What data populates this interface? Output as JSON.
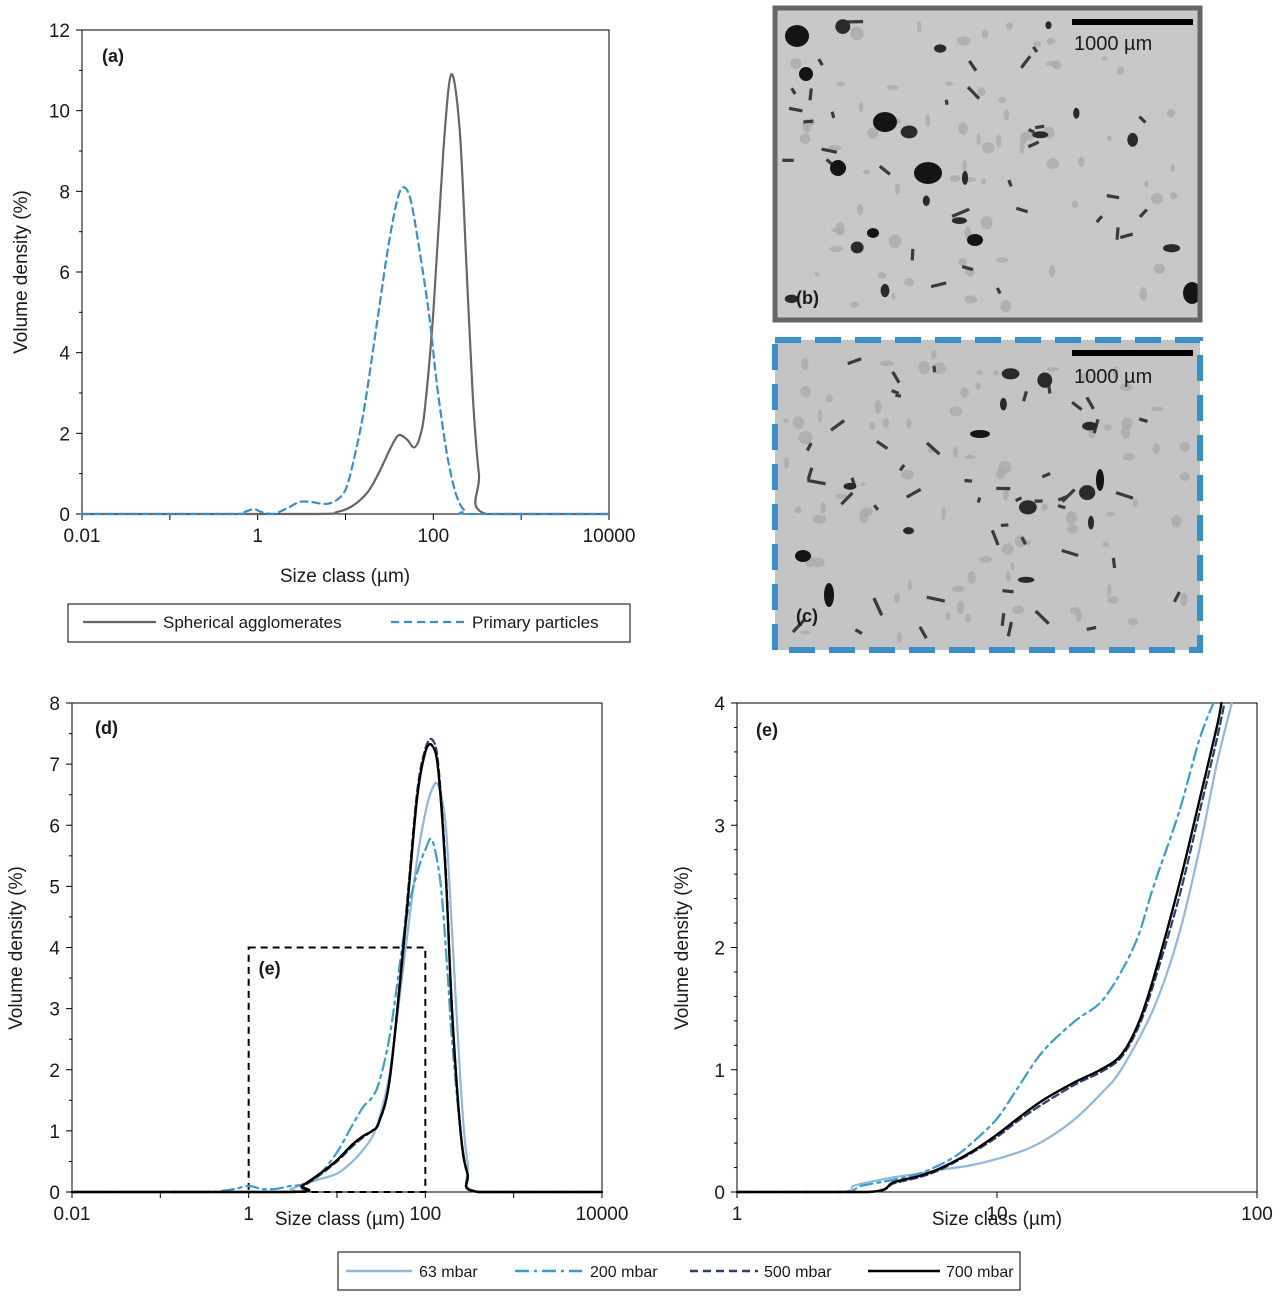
{
  "colors": {
    "grey_solid": "#666666",
    "blue_dashed": "#3a8fc8",
    "light_blue": "#8fb8dc",
    "teal_dashdot": "#3a9fc8",
    "navy_dashed": "#2e3f6e",
    "black": "#000000",
    "photo_bg": "#c6c6c6"
  },
  "chart_data": [
    {
      "panel": "(a)",
      "type": "line",
      "xscale": "log",
      "xlim": [
        0.01,
        10000
      ],
      "ylim": [
        0,
        12
      ],
      "xticks": [
        "0.01",
        "1",
        "100",
        "10000"
      ],
      "yticks": [
        "0",
        "2",
        "4",
        "6",
        "8",
        "10",
        "12"
      ],
      "xlabel": "Size class (µm)",
      "ylabel": "Volume density (%)",
      "legend_position": "bottom",
      "series": [
        {
          "name": "Spherical agglomerates",
          "style": "solid",
          "x": [
            0.01,
            4,
            8,
            12,
            18,
            25,
            32,
            40,
            50,
            60,
            70,
            80,
            100,
            130,
            160,
            200,
            240,
            280,
            330,
            400,
            10000
          ],
          "y": [
            0,
            0,
            0.05,
            0.2,
            0.55,
            1.1,
            1.6,
            1.95,
            1.85,
            1.65,
            1.9,
            2.6,
            5.0,
            9.0,
            10.9,
            9.5,
            6.0,
            3.0,
            1.0,
            0,
            0
          ]
        },
        {
          "name": "Primary particles",
          "style": "dashed",
          "x": [
            0.01,
            0.5,
            0.7,
            0.9,
            1.1,
            1.5,
            2.2,
            3,
            4,
            6,
            8,
            10,
            12,
            16,
            22,
            30,
            38,
            45,
            55,
            70,
            90,
            110,
            140,
            170,
            200,
            230,
            270,
            10000
          ],
          "y": [
            0,
            0,
            0.05,
            0.12,
            0.05,
            0,
            0.15,
            0.3,
            0.3,
            0.25,
            0.35,
            0.6,
            1.2,
            2.5,
            4.5,
            6.5,
            7.7,
            8.1,
            7.8,
            6.5,
            4.9,
            3.2,
            1.6,
            0.7,
            0.25,
            0.08,
            0,
            0
          ]
        }
      ]
    },
    {
      "panel": "(d)",
      "type": "line",
      "xscale": "log",
      "xlim": [
        0.01,
        10000
      ],
      "ylim": [
        0,
        8
      ],
      "xticks": [
        "0.01",
        "1",
        "100",
        "10000"
      ],
      "yticks": [
        "0",
        "1",
        "2",
        "3",
        "4",
        "5",
        "6",
        "7",
        "8"
      ],
      "xlabel": "Size class (µm)",
      "ylabel": "Volume density (%)",
      "inset_box": {
        "label": "(e)",
        "xlim": [
          1,
          100
        ],
        "ylim": [
          0,
          4
        ]
      },
      "series": [
        {
          "name": "63 mbar",
          "style": "solid",
          "x": [
            0.01,
            2,
            3,
            4,
            6,
            10,
            15,
            20,
            25,
            30,
            40,
            60,
            80,
            100,
            120,
            140,
            170,
            200,
            250,
            300,
            400,
            10000
          ],
          "y": [
            0,
            0,
            0.05,
            0.12,
            0.2,
            0.3,
            0.5,
            0.7,
            0.9,
            1.2,
            2.0,
            4.0,
            5.4,
            6.2,
            6.6,
            6.65,
            6.0,
            4.3,
            1.8,
            0.5,
            0,
            0
          ]
        },
        {
          "name": "200 mbar",
          "style": "dashdot",
          "x": [
            0.01,
            0.3,
            0.5,
            0.7,
            1.0,
            1.4,
            2,
            3,
            4,
            6,
            10,
            15,
            20,
            25,
            30,
            40,
            60,
            80,
            100,
            120,
            150,
            180,
            200,
            250,
            300,
            400,
            10000
          ],
          "y": [
            0,
            0,
            0.02,
            0.05,
            0.1,
            0.05,
            0.05,
            0.1,
            0.12,
            0.25,
            0.65,
            1.1,
            1.4,
            1.55,
            1.8,
            2.6,
            4.4,
            5.2,
            5.6,
            5.75,
            5.0,
            3.5,
            2.5,
            1.0,
            0.3,
            0,
            0
          ]
        },
        {
          "name": "500 mbar",
          "style": "dashed",
          "x": [
            0.01,
            3,
            4,
            6,
            10,
            15,
            20,
            25,
            30,
            40,
            60,
            80,
            100,
            120,
            140,
            170,
            200,
            250,
            300,
            400,
            10000
          ],
          "y": [
            0,
            0,
            0.08,
            0.25,
            0.5,
            0.75,
            0.9,
            1.0,
            1.15,
            1.9,
            4.5,
            6.5,
            7.25,
            7.4,
            7.0,
            5.3,
            3.0,
            1.0,
            0.3,
            0,
            0
          ]
        },
        {
          "name": "700 mbar",
          "style": "solid",
          "x": [
            0.01,
            3,
            4,
            6,
            10,
            15,
            20,
            25,
            30,
            40,
            60,
            80,
            100,
            120,
            140,
            170,
            200,
            250,
            300,
            400,
            10000
          ],
          "y": [
            0,
            0,
            0.1,
            0.27,
            0.52,
            0.78,
            0.92,
            1.0,
            1.15,
            1.9,
            4.4,
            6.4,
            7.2,
            7.3,
            6.9,
            5.2,
            3.0,
            1.0,
            0.3,
            0,
            0
          ]
        }
      ]
    },
    {
      "panel": "(e)",
      "type": "line",
      "xscale": "log",
      "xlim": [
        1,
        100
      ],
      "ylim": [
        0,
        4
      ],
      "xticks": [
        "1",
        "10",
        "100"
      ],
      "yticks": [
        "0",
        "1",
        "2",
        "3",
        "4"
      ],
      "xlabel": "Size class (µm)",
      "ylabel": "Volume density (%)",
      "legend_position": "bottom",
      "series": [
        {
          "name": "63 mbar",
          "style": "solid",
          "x": [
            1,
            2.5,
            2.8,
            3.2,
            4,
            5,
            6,
            8,
            10,
            13,
            16,
            20,
            25,
            30,
            40,
            50,
            60,
            70,
            80
          ],
          "y": [
            0,
            0,
            0.05,
            0.08,
            0.12,
            0.15,
            0.18,
            0.22,
            0.27,
            0.35,
            0.45,
            0.6,
            0.8,
            1.0,
            1.5,
            2.1,
            2.8,
            3.5,
            4.0
          ]
        },
        {
          "name": "200 mbar",
          "style": "dashdot",
          "x": [
            1,
            2.5,
            3,
            4,
            5,
            6,
            7,
            8,
            10,
            12,
            15,
            20,
            25,
            30,
            35,
            40,
            50,
            60,
            68
          ],
          "y": [
            0,
            0,
            0.05,
            0.1,
            0.15,
            0.22,
            0.3,
            0.4,
            0.6,
            0.85,
            1.15,
            1.4,
            1.55,
            1.8,
            2.1,
            2.5,
            3.1,
            3.7,
            4.0
          ]
        },
        {
          "name": "500 mbar",
          "style": "dashed",
          "x": [
            1,
            3.2,
            4,
            5,
            6,
            8,
            10,
            12,
            15,
            20,
            25,
            30,
            35,
            40,
            50,
            60,
            70,
            75
          ],
          "y": [
            0,
            0,
            0.07,
            0.12,
            0.18,
            0.32,
            0.45,
            0.58,
            0.72,
            0.88,
            0.98,
            1.1,
            1.35,
            1.7,
            2.4,
            3.1,
            3.7,
            4.0
          ]
        },
        {
          "name": "700 mbar",
          "style": "solid",
          "x": [
            1,
            3.2,
            4,
            5,
            6,
            8,
            10,
            12,
            15,
            20,
            25,
            30,
            35,
            40,
            50,
            60,
            70,
            73
          ],
          "y": [
            0,
            0,
            0.08,
            0.13,
            0.19,
            0.33,
            0.47,
            0.6,
            0.75,
            0.9,
            1.0,
            1.12,
            1.38,
            1.75,
            2.5,
            3.2,
            3.8,
            4.0
          ]
        }
      ]
    }
  ],
  "micrographs": [
    {
      "panel": "(b)",
      "scale_bar": "1000 µm",
      "border": "grey solid"
    },
    {
      "panel": "(c)",
      "scale_bar": "1000 µm",
      "border": "blue dashed"
    }
  ],
  "legend_bottom": [
    "63 mbar",
    "200 mbar",
    "500 mbar",
    "700 mbar"
  ]
}
